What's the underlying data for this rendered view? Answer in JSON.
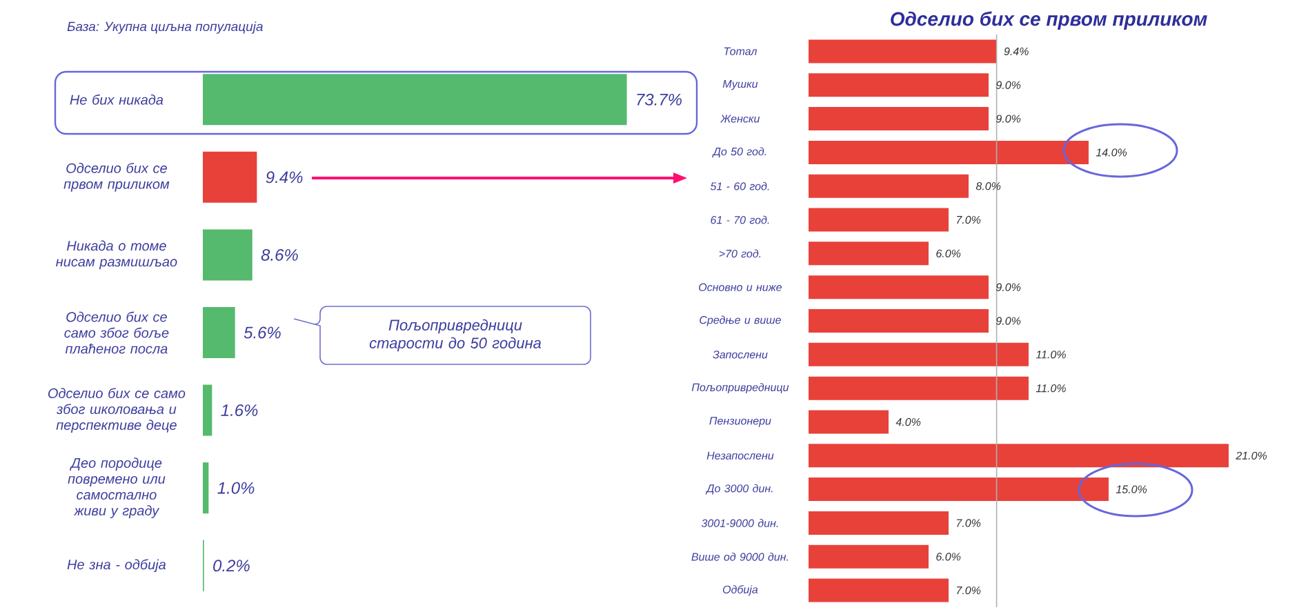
{
  "chart_data": [
    {
      "type": "bar",
      "orientation": "horizontal",
      "categories": [
        "Не бих никада",
        "Одселио бих се првом приликом",
        "Никада о томе нисам размишљао",
        "Одселио бих се само због боље плаћеног посла",
        "Одселио бих се само због школовања и перспективе деце",
        "Део породице повремено или самостално живи у граду",
        "Не зна - одбија"
      ],
      "values": [
        73.7,
        9.4,
        8.6,
        5.6,
        1.6,
        1.0,
        0.2
      ],
      "colors": [
        "#55b96e",
        "#e8413a",
        "#55b96e",
        "#55b96e",
        "#55b96e",
        "#55b96e",
        "#55b96e"
      ],
      "value_labels": [
        "73.7%",
        "9.4%",
        "8.6%",
        "5.6%",
        "1.6%",
        "1.0%",
        "0.2%"
      ],
      "annotations": [
        "База: Укупна циљна популација",
        "Пољопривредници старости до 50 година"
      ]
    },
    {
      "type": "bar",
      "orientation": "horizontal",
      "title": "Одселио бих се првом приликом",
      "categories": [
        "Тотал",
        "Мушки",
        "Женски",
        "До 50 год.",
        "51 - 60 год.",
        "61 - 70 год.",
        ">70 год.",
        "Основно и ниже",
        "Средње и више",
        "Запослени",
        "Пољопривредници",
        "Пензионери",
        "Незапослени",
        "До 3000 дин.",
        "3001-9000 дин.",
        "Више од 9000 дин.",
        "Одбија"
      ],
      "values": [
        9.4,
        9.0,
        9.0,
        14.0,
        8.0,
        7.0,
        6.0,
        9.0,
        9.0,
        11.0,
        11.0,
        4.0,
        21.0,
        15.0,
        7.0,
        6.0,
        7.0
      ],
      "color": "#e8413a",
      "value_labels": [
        "9.4%",
        "9.0%",
        "9.0%",
        "14.0%",
        "8.0%",
        "7.0%",
        "6.0%",
        "9.0%",
        "9.0%",
        "11.0%",
        "11.0%",
        "4.0%",
        "21.0%",
        "15.0%",
        "7.0%",
        "6.0%",
        "7.0%"
      ],
      "ref_lines": [
        {
          "axis": "x",
          "value": 9.4,
          "color": "#b0b0b0"
        }
      ]
    }
  ]
}
